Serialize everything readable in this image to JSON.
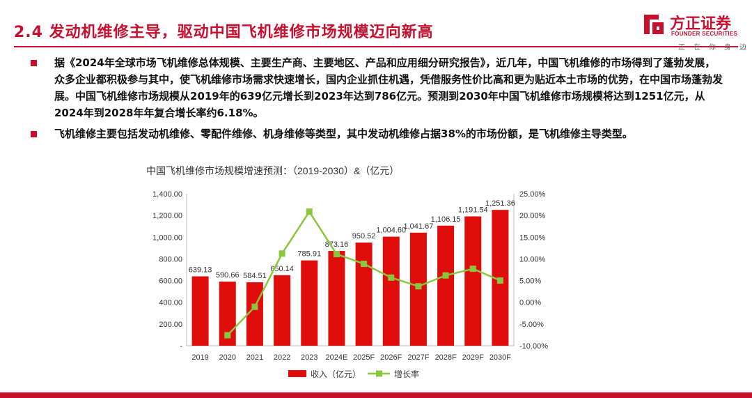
{
  "header": {
    "title": "2.4 发动机维修主导，驱动中国飞机维修市场规模迈向新高"
  },
  "logo": {
    "name": "方正证券",
    "en": "FOUNDER SECURITIES",
    "slogan": "正在你身边"
  },
  "bullets": [
    {
      "text": "据《2024年全球市场飞机维修总体规模、主要生产商、主要地区、产品和应用细分研究报告》，近几年，中国飞机维修的市场得到了蓬勃发展，众多企业都积极参与其中，使飞机维修市场需求快速增长，国内企业抓住机遇，凭借服务性价比高和更为贴近本土市场的优势，在中国市场蓬勃发展。中国飞机维修市场规模从2019年的639亿元增长到2023年达到786亿元。预测到2030年中国飞机维修市场规模将达到1251亿元，从2024年到2028年年复合增长率约6.18%。"
    },
    {
      "text": "飞机维修主要包括发动机维修、零配件维修、机身维修等类型，其中发动机维修占据38%的市场份额，是飞机维修主导类型。"
    }
  ],
  "chart_data": {
    "type": "bar",
    "title": "中国飞机维修市场规模增速预测：（2019-2030）&（亿元）",
    "categories": [
      "2019",
      "2020",
      "2021",
      "2022",
      "2023",
      "2024E",
      "2025F",
      "2026F",
      "2027F",
      "2028F",
      "2029F",
      "2030F"
    ],
    "series": [
      {
        "name": "收入（亿元）",
        "type": "bar",
        "axis": "left",
        "color": "#e00d0d",
        "values": [
          639.13,
          590.66,
          584.51,
          650.14,
          785.91,
          873.16,
          950.52,
          1004.6,
          1041.67,
          1106.15,
          1191.54,
          1251.36
        ],
        "labels": [
          "639.13",
          "590.66",
          "584.51",
          "650.14",
          "785.91",
          "873.16",
          "950.52",
          "1,004.60",
          "1,041.67",
          "1,106.15",
          "1,191.54",
          "1,251.36"
        ]
      },
      {
        "name": "增长率",
        "type": "line",
        "axis": "right",
        "color": "#8cc63f",
        "values": [
          null,
          -7.58,
          -1.04,
          11.23,
          20.88,
          11.1,
          8.86,
          5.69,
          3.69,
          6.19,
          7.72,
          5.02
        ]
      }
    ],
    "ylim_left": [
      0,
      1400
    ],
    "yticks_left": [
      "-",
      "200.00",
      "400.00",
      "600.00",
      "800.00",
      "1,000.00",
      "1,200.00",
      "1,400.00"
    ],
    "ylim_right": [
      -10,
      25
    ],
    "yticks_right": [
      "-10.00%",
      "-5.00%",
      "0.00%",
      "5.00%",
      "10.00%",
      "15.00%",
      "20.00%",
      "25.00%"
    ],
    "grid": false,
    "legend_position": "bottom"
  }
}
